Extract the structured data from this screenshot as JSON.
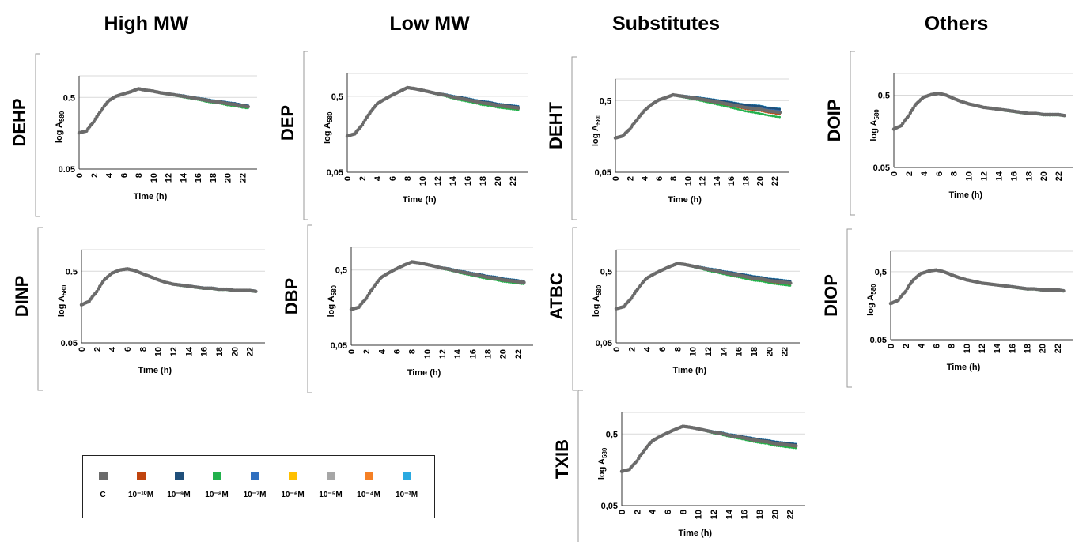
{
  "columns": [
    "High MW",
    "Low MW",
    "Substitutes",
    "Others"
  ],
  "legend": {
    "entries": [
      {
        "label": "C",
        "color": "#6b6b6b"
      },
      {
        "label": "10⁻¹⁰M",
        "color": "#c0440e"
      },
      {
        "label": "10⁻⁹M",
        "color": "#1f4f7a"
      },
      {
        "label": "10⁻⁸M",
        "color": "#22b14c"
      },
      {
        "label": "10⁻⁷M",
        "color": "#2f6fbf"
      },
      {
        "label": "10⁻⁶M",
        "color": "#ffc000"
      },
      {
        "label": "10⁻⁵M",
        "color": "#a6a6a6"
      },
      {
        "label": "10⁻⁴M",
        "color": "#f58025"
      },
      {
        "label": "10⁻³M",
        "color": "#2aa9e0"
      }
    ]
  },
  "chart_data": [
    {
      "id": "DEHP",
      "type": "scatter",
      "ylabel_main": "log A",
      "ylabel_sub": "580",
      "xlabel": "Time (h)",
      "side_label": "DEHP",
      "yticks": [
        "0.05",
        "0.5"
      ],
      "x_ticks": [
        0,
        2,
        4,
        6,
        8,
        10,
        12,
        14,
        16,
        18,
        20,
        22
      ],
      "xlim": [
        0,
        24
      ],
      "ylim": [
        0.05,
        1.0
      ],
      "log_y": true,
      "control_x": [
        0,
        1,
        2,
        3,
        4,
        5,
        6,
        7,
        8,
        9,
        10,
        11,
        12,
        13,
        14,
        15,
        16,
        17,
        18,
        19,
        20,
        21,
        22,
        23
      ],
      "control_y": [
        0.16,
        0.17,
        0.23,
        0.33,
        0.45,
        0.52,
        0.56,
        0.6,
        0.66,
        0.63,
        0.61,
        0.58,
        0.56,
        0.54,
        0.52,
        0.5,
        0.48,
        0.46,
        0.44,
        0.43,
        0.41,
        0.4,
        0.38,
        0.37
      ],
      "spread": [
        0,
        0,
        0,
        0,
        0,
        0,
        0,
        0,
        0,
        0,
        0,
        0.01,
        0.02,
        0.02,
        0.03,
        0.03,
        0.03,
        0.04,
        0.04,
        0.04,
        0.05,
        0.05,
        0.05,
        0.05
      ]
    },
    {
      "id": "DEP",
      "type": "scatter",
      "ylabel_main": "log A",
      "ylabel_sub": "580",
      "xlabel": "Time (h)",
      "side_label": "DEP",
      "yticks": [
        "0,05",
        "0,5"
      ],
      "x_ticks": [
        0,
        2,
        4,
        6,
        8,
        10,
        12,
        14,
        16,
        18,
        20,
        22
      ],
      "xlim": [
        0,
        24
      ],
      "ylim": [
        0.05,
        1.0
      ],
      "log_y": true,
      "control_x": [
        0,
        1,
        2,
        3,
        4,
        5,
        6,
        7,
        8,
        9,
        10,
        11,
        12,
        13,
        14,
        15,
        16,
        17,
        18,
        19,
        20,
        21,
        22,
        23
      ],
      "control_y": [
        0.15,
        0.16,
        0.21,
        0.3,
        0.4,
        0.46,
        0.52,
        0.58,
        0.65,
        0.63,
        0.6,
        0.57,
        0.54,
        0.52,
        0.49,
        0.47,
        0.45,
        0.43,
        0.41,
        0.4,
        0.38,
        0.37,
        0.36,
        0.35
      ],
      "spread": [
        0,
        0,
        0,
        0,
        0,
        0,
        0,
        0,
        0,
        0,
        0,
        0.01,
        0.02,
        0.03,
        0.04,
        0.05,
        0.05,
        0.05,
        0.06,
        0.06,
        0.06,
        0.06,
        0.06,
        0.06
      ]
    },
    {
      "id": "DEHT",
      "type": "scatter",
      "ylabel_main": "log A",
      "ylabel_sub": "580",
      "xlabel": "Time (h)",
      "side_label": "DEHT",
      "yticks": [
        "0,05",
        "0,5"
      ],
      "x_ticks": [
        0,
        2,
        4,
        6,
        8,
        10,
        12,
        14,
        16,
        18,
        20,
        22
      ],
      "xlim": [
        0,
        24
      ],
      "ylim": [
        0.05,
        1.0
      ],
      "log_y": true,
      "control_x": [
        0,
        1,
        2,
        3,
        4,
        5,
        6,
        7,
        8,
        9,
        10,
        11,
        12,
        13,
        14,
        15,
        16,
        17,
        18,
        19,
        20,
        21,
        22,
        23
      ],
      "control_y": [
        0.15,
        0.16,
        0.2,
        0.27,
        0.36,
        0.44,
        0.51,
        0.55,
        0.6,
        0.58,
        0.56,
        0.54,
        0.52,
        0.5,
        0.48,
        0.46,
        0.44,
        0.42,
        0.4,
        0.39,
        0.38,
        0.36,
        0.35,
        0.34
      ],
      "spread": [
        0,
        0,
        0,
        0,
        0,
        0,
        0,
        0,
        0,
        0.02,
        0.03,
        0.04,
        0.05,
        0.06,
        0.07,
        0.08,
        0.09,
        0.1,
        0.11,
        0.12,
        0.13,
        0.13,
        0.14,
        0.14
      ]
    },
    {
      "id": "DOIP",
      "type": "scatter",
      "ylabel_main": "log A",
      "ylabel_sub": "580",
      "xlabel": "Time (h)",
      "side_label": "DOIP",
      "yticks": [
        "0.05",
        "0.5"
      ],
      "x_ticks": [
        0,
        2,
        4,
        6,
        8,
        10,
        12,
        14,
        16,
        18,
        20,
        22
      ],
      "xlim": [
        0,
        24
      ],
      "ylim": [
        0.05,
        1.0
      ],
      "log_y": true,
      "control_x": [
        0,
        1,
        2,
        3,
        4,
        5,
        6,
        7,
        8,
        9,
        10,
        11,
        12,
        13,
        14,
        15,
        16,
        17,
        18,
        19,
        20,
        21,
        22,
        23
      ],
      "control_y": [
        0.17,
        0.19,
        0.26,
        0.38,
        0.47,
        0.51,
        0.53,
        0.5,
        0.45,
        0.41,
        0.38,
        0.36,
        0.34,
        0.33,
        0.32,
        0.31,
        0.3,
        0.29,
        0.28,
        0.28,
        0.27,
        0.27,
        0.27,
        0.26
      ],
      "spread": [
        0,
        0,
        0,
        0,
        0,
        0,
        0,
        0,
        0,
        0,
        0,
        0,
        0.01,
        0.01,
        0.01,
        0.02,
        0.02,
        0.02,
        0.02,
        0.02,
        0.02,
        0.02,
        0.02,
        0.02
      ]
    },
    {
      "id": "DINP",
      "type": "scatter",
      "ylabel_main": "log A",
      "ylabel_sub": "580",
      "xlabel": "Time (h)",
      "side_label": "DINP",
      "yticks": [
        "0.05",
        "0.5"
      ],
      "x_ticks": [
        0,
        2,
        4,
        6,
        8,
        10,
        12,
        14,
        16,
        18,
        20,
        22
      ],
      "xlim": [
        0,
        24
      ],
      "ylim": [
        0.05,
        1.0
      ],
      "log_y": true,
      "control_x": [
        0,
        1,
        2,
        3,
        4,
        5,
        6,
        7,
        8,
        9,
        10,
        11,
        12,
        13,
        14,
        15,
        16,
        17,
        18,
        19,
        20,
        21,
        22,
        23
      ],
      "control_y": [
        0.17,
        0.19,
        0.26,
        0.38,
        0.47,
        0.52,
        0.54,
        0.51,
        0.46,
        0.42,
        0.38,
        0.35,
        0.33,
        0.32,
        0.31,
        0.3,
        0.29,
        0.29,
        0.28,
        0.28,
        0.27,
        0.27,
        0.27,
        0.26
      ],
      "spread": [
        0,
        0,
        0,
        0,
        0,
        0,
        0,
        0,
        0,
        0,
        0,
        0.01,
        0.01,
        0.02,
        0.02,
        0.02,
        0.02,
        0.02,
        0.02,
        0.02,
        0.02,
        0.02,
        0.02,
        0.02
      ]
    },
    {
      "id": "DBP",
      "type": "scatter",
      "ylabel_main": "log A",
      "ylabel_sub": "580",
      "xlabel": "Time (h)",
      "side_label": "DBP",
      "yticks": [
        "0,05",
        "0,5"
      ],
      "x_ticks": [
        0,
        2,
        4,
        6,
        8,
        10,
        12,
        14,
        16,
        18,
        20,
        22
      ],
      "xlim": [
        0,
        24
      ],
      "ylim": [
        0.05,
        1.0
      ],
      "log_y": true,
      "control_x": [
        0,
        1,
        2,
        3,
        4,
        5,
        6,
        7,
        8,
        9,
        10,
        11,
        12,
        13,
        14,
        15,
        16,
        17,
        18,
        19,
        20,
        21,
        22,
        23
      ],
      "control_y": [
        0.15,
        0.16,
        0.21,
        0.3,
        0.4,
        0.46,
        0.52,
        0.58,
        0.64,
        0.62,
        0.59,
        0.56,
        0.53,
        0.51,
        0.48,
        0.46,
        0.44,
        0.42,
        0.4,
        0.39,
        0.37,
        0.36,
        0.35,
        0.34
      ],
      "spread": [
        0,
        0,
        0,
        0,
        0,
        0,
        0,
        0,
        0,
        0,
        0,
        0.01,
        0.02,
        0.03,
        0.03,
        0.04,
        0.04,
        0.05,
        0.05,
        0.05,
        0.05,
        0.05,
        0.05,
        0.05
      ]
    },
    {
      "id": "ATBC",
      "type": "scatter",
      "ylabel_main": "log A",
      "ylabel_sub": "580",
      "xlabel": "Time (h)",
      "side_label": "ATBC",
      "yticks": [
        "0,05",
        "0,5"
      ],
      "x_ticks": [
        0,
        2,
        4,
        6,
        8,
        10,
        12,
        14,
        16,
        18,
        20,
        22
      ],
      "xlim": [
        0,
        24
      ],
      "ylim": [
        0.05,
        1.0
      ],
      "log_y": true,
      "control_x": [
        0,
        1,
        2,
        3,
        4,
        5,
        6,
        7,
        8,
        9,
        10,
        11,
        12,
        13,
        14,
        15,
        16,
        17,
        18,
        19,
        20,
        21,
        22,
        23
      ],
      "control_y": [
        0.15,
        0.16,
        0.21,
        0.3,
        0.4,
        0.46,
        0.52,
        0.58,
        0.64,
        0.62,
        0.59,
        0.56,
        0.53,
        0.51,
        0.48,
        0.46,
        0.44,
        0.42,
        0.4,
        0.39,
        0.37,
        0.36,
        0.35,
        0.34
      ],
      "spread": [
        0,
        0,
        0,
        0,
        0,
        0,
        0,
        0,
        0,
        0,
        0.02,
        0.03,
        0.04,
        0.05,
        0.05,
        0.06,
        0.06,
        0.07,
        0.07,
        0.07,
        0.07,
        0.08,
        0.08,
        0.08
      ]
    },
    {
      "id": "DIOP",
      "type": "scatter",
      "ylabel_main": "log A",
      "ylabel_sub": "580",
      "xlabel": "Time (h)",
      "side_label": "DIOP",
      "yticks": [
        "0,05",
        "0,5"
      ],
      "x_ticks": [
        0,
        2,
        4,
        6,
        8,
        10,
        12,
        14,
        16,
        18,
        20,
        22
      ],
      "xlim": [
        0,
        24
      ],
      "ylim": [
        0.05,
        1.0
      ],
      "log_y": true,
      "control_x": [
        0,
        1,
        2,
        3,
        4,
        5,
        6,
        7,
        8,
        9,
        10,
        11,
        12,
        13,
        14,
        15,
        16,
        17,
        18,
        19,
        20,
        21,
        22,
        23
      ],
      "control_y": [
        0.17,
        0.19,
        0.26,
        0.38,
        0.47,
        0.51,
        0.53,
        0.5,
        0.45,
        0.41,
        0.38,
        0.36,
        0.34,
        0.33,
        0.32,
        0.31,
        0.3,
        0.29,
        0.28,
        0.28,
        0.27,
        0.27,
        0.27,
        0.26
      ],
      "spread": [
        0,
        0,
        0,
        0,
        0,
        0,
        0,
        0,
        0,
        0,
        0,
        0,
        0.01,
        0.01,
        0.01,
        0.02,
        0.02,
        0.02,
        0.02,
        0.02,
        0.02,
        0.02,
        0.02,
        0.02
      ]
    },
    {
      "id": "TXIB",
      "type": "scatter",
      "ylabel_main": "log A",
      "ylabel_sub": "580",
      "xlabel": "Time (h)",
      "side_label": "TXIB",
      "yticks": [
        "0,05",
        "0,5"
      ],
      "x_ticks": [
        0,
        2,
        4,
        6,
        8,
        10,
        12,
        14,
        16,
        18,
        20,
        22
      ],
      "xlim": [
        0,
        24
      ],
      "ylim": [
        0.05,
        1.0
      ],
      "log_y": true,
      "control_x": [
        0,
        1,
        2,
        3,
        4,
        5,
        6,
        7,
        8,
        9,
        10,
        11,
        12,
        13,
        14,
        15,
        16,
        17,
        18,
        19,
        20,
        21,
        22,
        23
      ],
      "control_y": [
        0.15,
        0.16,
        0.21,
        0.3,
        0.4,
        0.46,
        0.52,
        0.58,
        0.64,
        0.62,
        0.59,
        0.56,
        0.53,
        0.51,
        0.48,
        0.46,
        0.44,
        0.42,
        0.4,
        0.39,
        0.37,
        0.36,
        0.35,
        0.34
      ],
      "spread": [
        0,
        0,
        0,
        0,
        0,
        0,
        0,
        0,
        0,
        0,
        0,
        0.02,
        0.03,
        0.04,
        0.04,
        0.05,
        0.05,
        0.06,
        0.06,
        0.06,
        0.07,
        0.07,
        0.07,
        0.07
      ]
    }
  ]
}
